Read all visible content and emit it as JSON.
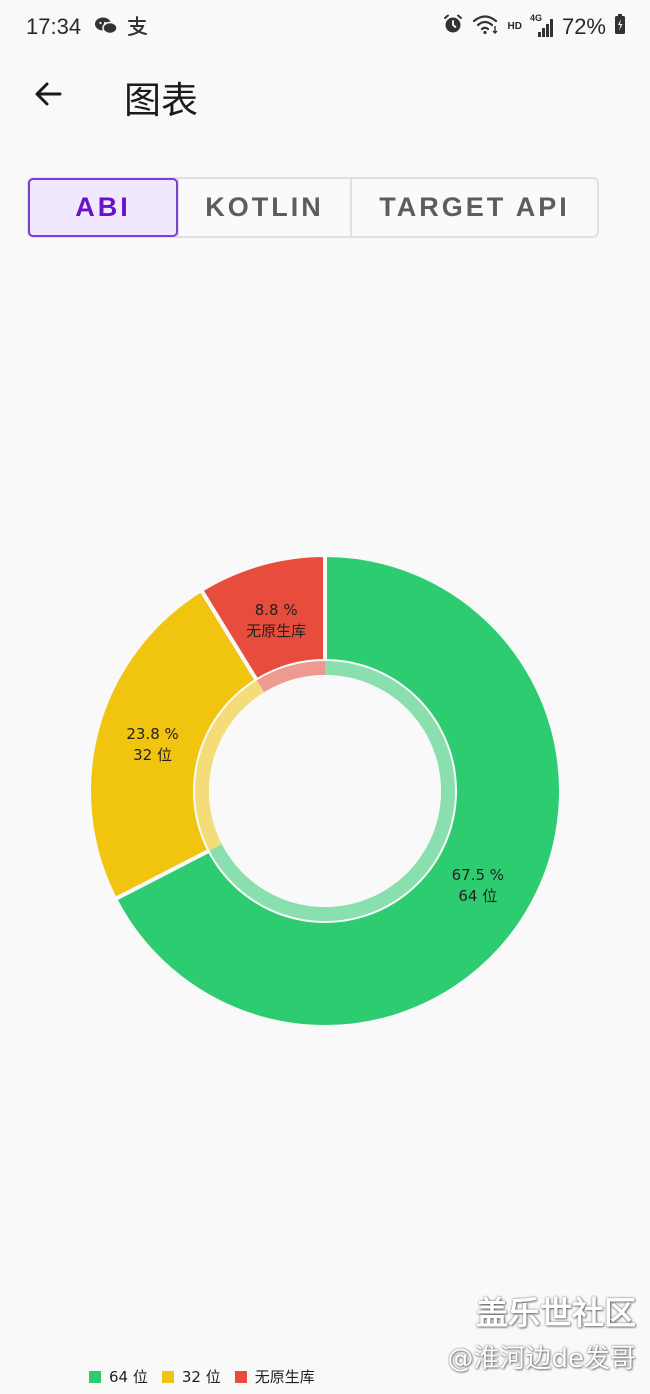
{
  "status_bar": {
    "time": "17:34",
    "left_icons": [
      "wechat-icon",
      "alipay-icon"
    ],
    "right_icons": [
      "alarm-icon",
      "wifi-icon",
      "hd-icon",
      "signal-4g-icon",
      "battery-icon"
    ],
    "hd_label": "HD",
    "network_label": "4G",
    "battery_percent": "72%"
  },
  "app_bar": {
    "back_icon": "arrow-left-icon",
    "title": "图表"
  },
  "tabs": [
    {
      "label": "ABI",
      "selected": true
    },
    {
      "label": "KOTLIN",
      "selected": false
    },
    {
      "label": "TARGET API",
      "selected": false
    }
  ],
  "colors": {
    "accent": "#6a12c9",
    "tab_selected_bg": "#f1e8ff",
    "slice_64": "#2ecc71",
    "slice_32": "#f1c40f",
    "slice_none": "#e74c3c"
  },
  "chart_data": {
    "type": "pie",
    "donut": true,
    "start": "top",
    "direction": "clockwise",
    "categories": [
      "64 位",
      "32 位",
      "无原生库"
    ],
    "values": [
      67.5,
      23.8,
      8.8
    ],
    "labels": [
      {
        "percent": "67.5 %",
        "name": "64 位"
      },
      {
        "percent": "23.8 %",
        "name": "32 位"
      },
      {
        "percent": "8.8 %",
        "name": "无原生库"
      }
    ],
    "colors": [
      "#2ecc71",
      "#f1c40f",
      "#e74c3c"
    ],
    "legend": [
      {
        "label": "64 位",
        "color": "#2ecc71"
      },
      {
        "label": "32 位",
        "color": "#f1c40f"
      },
      {
        "label": "无原生库",
        "color": "#e74c3c"
      }
    ],
    "legend_position": "bottom-left"
  },
  "watermark": {
    "main": "盖乐世社区",
    "sub": "@淮河边de发哥"
  }
}
